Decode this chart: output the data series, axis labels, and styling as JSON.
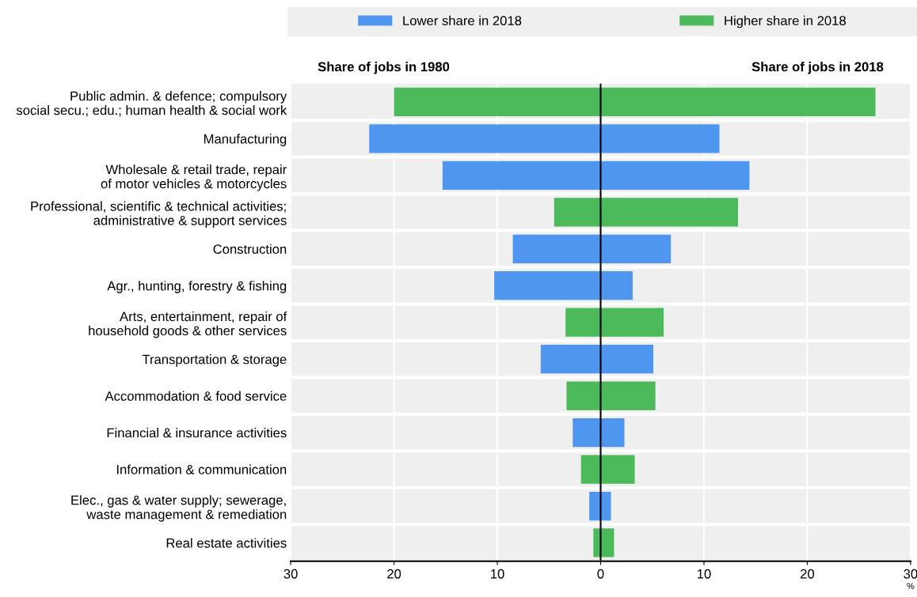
{
  "chart_data": {
    "type": "bar",
    "orientation": "horizontal",
    "stacked": true,
    "categories": [
      "Public admin. & defence; compulsory\nsocial secu.; edu.; human health & social work",
      "Manufacturing",
      "Wholesale & retail trade, repair\nof motor vehicles & motorcycles",
      "Professional, scientific & technical activities;\nadministrative & support services",
      "Construction",
      "Agr., hunting, forestry & fishing",
      "Arts, entertainment, repair of\nhousehold goods & other services",
      "Transportation & storage",
      "Accommodation & food service",
      "Financial & insurance activities",
      "Information & communication",
      "Elec., gas & water supply; sewerage,\nwaste management & remediation",
      "Real estate activities"
    ],
    "series": [
      {
        "name": "Lower share in 2018",
        "color": "#4e96f0",
        "values": [
          null,
          11.5,
          14.4,
          null,
          6.8,
          3.1,
          null,
          5.1,
          null,
          2.3,
          null,
          1.0,
          null
        ]
      },
      {
        "color": "#4e96f0",
        "values": [
          null,
          -22.4,
          -15.3,
          null,
          -8.5,
          -10.3,
          null,
          -5.8,
          null,
          -2.7,
          null,
          -1.1,
          null
        ]
      },
      {
        "name": "Higher share in 2018",
        "color": "#4cba5a",
        "values": [
          26.6,
          null,
          null,
          13.3,
          null,
          null,
          6.1,
          null,
          5.3,
          null,
          3.3,
          null,
          1.3
        ]
      },
      {
        "color": "#4cba5a",
        "values": [
          -20.0,
          null,
          null,
          -4.5,
          null,
          null,
          -3.4,
          null,
          -3.3,
          null,
          -1.9,
          null,
          -0.7
        ]
      }
    ],
    "xlim": [
      -30,
      30
    ],
    "xticks": [
      {
        "value": -30,
        "label": "30"
      },
      {
        "value": -20,
        "label": "20"
      },
      {
        "value": -10,
        "label": "10"
      },
      0,
      10,
      20,
      30
    ],
    "xlabel": "%",
    "annotations": [
      "Share of jobs in 1980",
      "Share of jobs in 2018"
    ],
    "ref_lines": [
      {
        "axis": "x",
        "value": 0,
        "color": "#000000"
      }
    ],
    "grid": "x",
    "legend": "top"
  }
}
